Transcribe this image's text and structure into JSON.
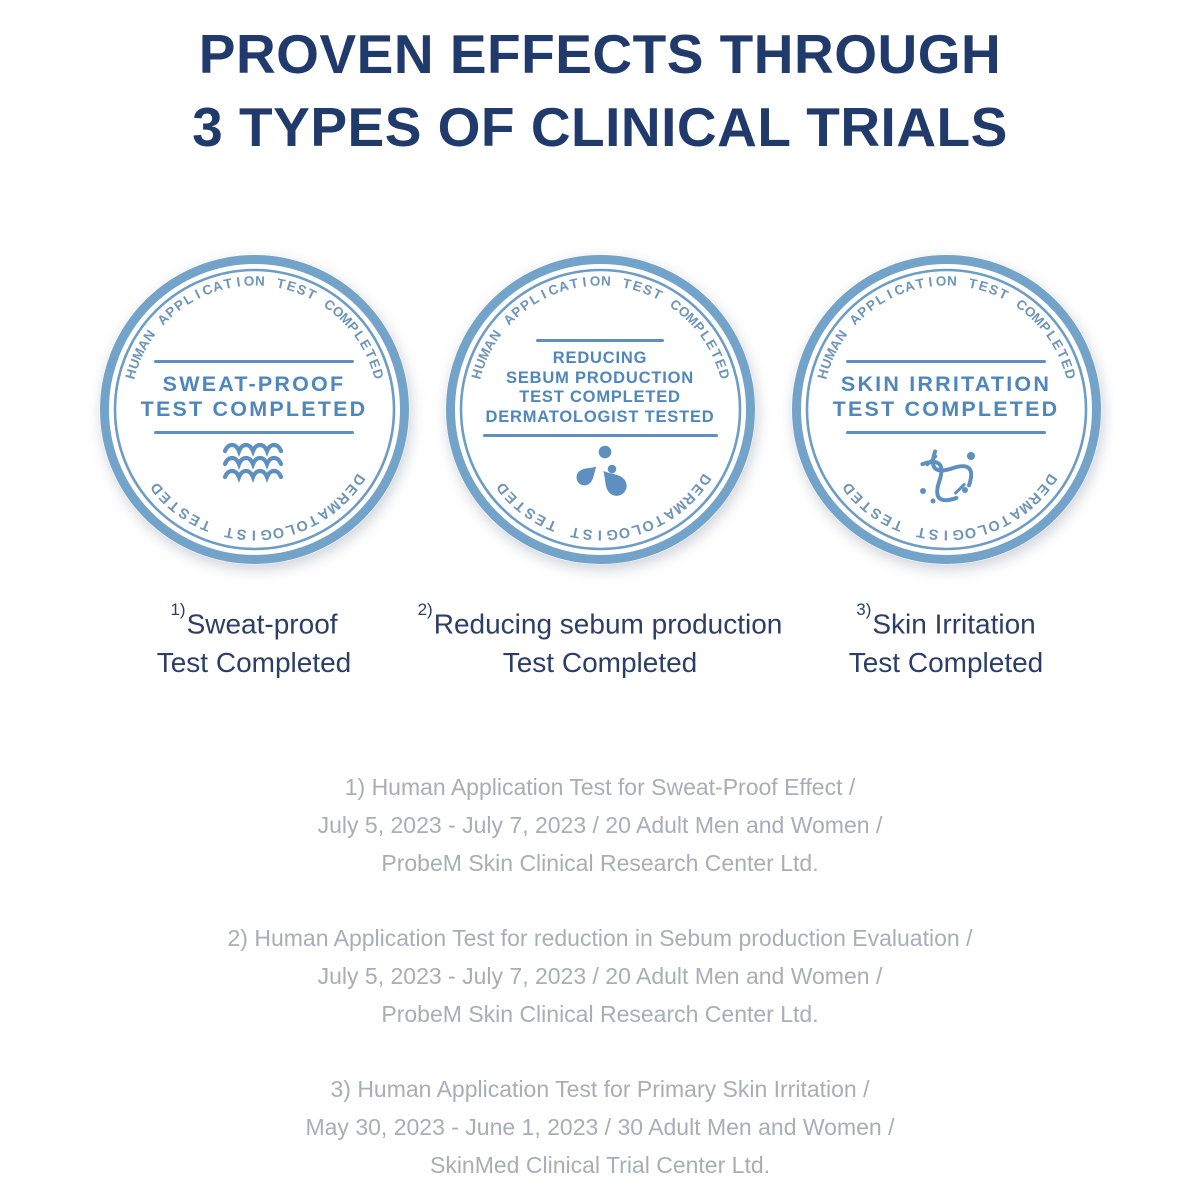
{
  "title": {
    "line1": "PROVEN EFFECTS THROUGH",
    "line2": "3 TYPES OF CLINICAL TRIALS"
  },
  "badges": [
    {
      "arc_top": "HUMAN APPLICATION TEST COMPLETED",
      "arc_bottom": "DERMATOLOGIST TESTED",
      "lines": [
        "SWEAT-PROOF",
        "TEST COMPLETED"
      ],
      "icon": "water-waves-icon",
      "caption_sup": "1)",
      "caption_line1": "Sweat-proof",
      "caption_line2": "Test Completed"
    },
    {
      "arc_top": "HUMAN APPLICATION TEST COMPLETED",
      "arc_bottom": "DERMATOLOGIST TESTED",
      "lines": [
        "REDUCING",
        "SEBUM PRODUCTION",
        "TEST COMPLETED",
        "DERMATOLOGIST TESTED"
      ],
      "icon": "sebum-molecule-icon",
      "caption_sup": "2)",
      "caption_line1": "Reducing sebum production",
      "caption_line2": "Test Completed"
    },
    {
      "arc_top": "HUMAN APPLICATION TEST COMPLETED",
      "arc_bottom": "DERMATOLOGIST TESTED",
      "lines": [
        "SKIN IRRITATION",
        "TEST COMPLETED"
      ],
      "icon": "dna-helix-icon",
      "caption_sup": "3)",
      "caption_line1": "Skin Irritation",
      "caption_line2": "Test Completed"
    }
  ],
  "notes": [
    {
      "line1": "1) Human Application Test for Sweat-Proof Effect /",
      "line2": "July 5, 2023 - July 7, 2023 / 20 Adult Men and Women /",
      "line3": "ProbeM Skin Clinical Research Center Ltd."
    },
    {
      "line1": "2) Human Application Test for reduction in Sebum production Evaluation /",
      "line2": "July 5, 2023 - July 7, 2023 / 20 Adult Men and Women /",
      "line3": "ProbeM Skin Clinical Research Center Ltd."
    },
    {
      "line1": "3) Human Application Test for Primary Skin Irritation /",
      "line2": "May 30, 2023 - June 1, 2023 / 30 Adult Men and Women /",
      "line3": "SkinMed Clinical Trial Center Ltd."
    }
  ],
  "colors": {
    "title_navy": "#1f3a6b",
    "caption_navy": "#2c3e68",
    "seal_ring": "#74a3c9",
    "seal_inner_ring": "#6d9cc4",
    "seal_arc_text": "#6e94b8",
    "seal_accent": "#5d90c1",
    "note_gray": "#a9adb6"
  }
}
